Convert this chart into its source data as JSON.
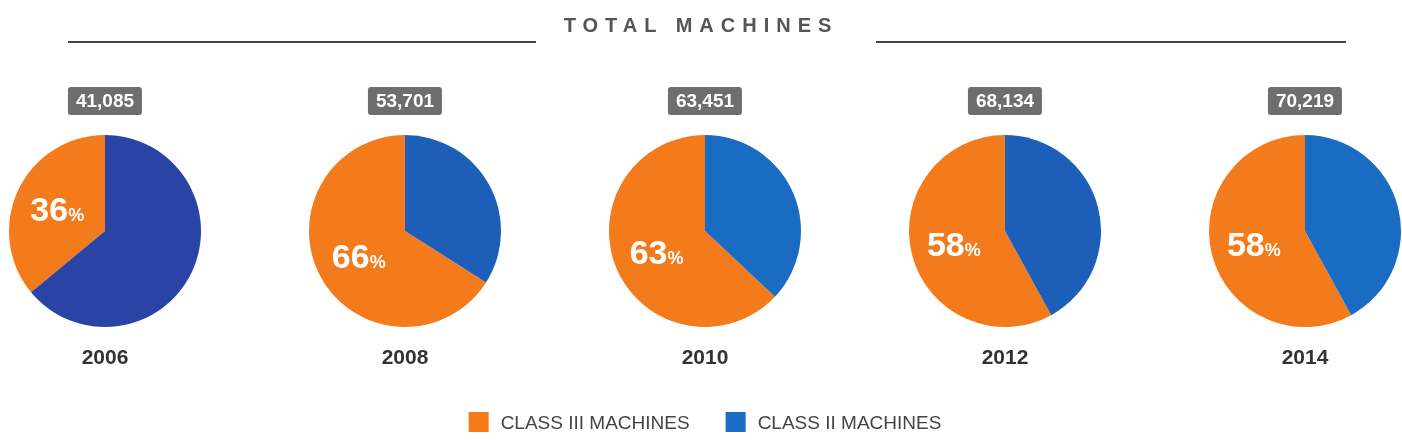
{
  "chart_data": [
    {
      "type": "other",
      "title": "TOTAL MACHINES"
    },
    {
      "type": "pie",
      "xlabel": "2006",
      "annotations": [
        "41,085"
      ],
      "categories": [
        null,
        null
      ],
      "values": [
        36,
        64
      ],
      "colors": [
        "#f47b1c",
        "#2a44a6"
      ],
      "value_labels": [
        "36%",
        null
      ]
    },
    {
      "type": "pie",
      "xlabel": "2008",
      "annotations": [
        "53,701"
      ],
      "categories": [
        null,
        null
      ],
      "values": [
        66,
        34
      ],
      "colors": [
        "#f47b1c",
        "#1d5fb8"
      ],
      "value_labels": [
        "66%",
        null
      ]
    },
    {
      "type": "pie",
      "xlabel": "2010",
      "annotations": [
        "63,451"
      ],
      "categories": [
        "CLASS III MACHINES",
        "CLASS II MACHINES"
      ],
      "values": [
        63,
        37
      ],
      "colors": [
        "#f47b1c",
        "#1a6cc2"
      ],
      "value_labels": [
        "63%",
        null
      ],
      "legend": "bottom"
    },
    {
      "type": "pie",
      "xlabel": "2012",
      "annotations": [
        "68,134"
      ],
      "categories": [
        null,
        null
      ],
      "values": [
        58,
        42
      ],
      "colors": [
        "#f47b1c",
        "#1d5fb8"
      ],
      "value_labels": [
        "58%",
        null
      ]
    },
    {
      "type": "pie",
      "xlabel": "2014",
      "annotations": [
        "70,219"
      ],
      "categories": [
        null,
        null
      ],
      "values": [
        58,
        42
      ],
      "colors": [
        "#f47b1c",
        "#1a6cc2"
      ],
      "value_labels": [
        "58%",
        null
      ]
    }
  ]
}
